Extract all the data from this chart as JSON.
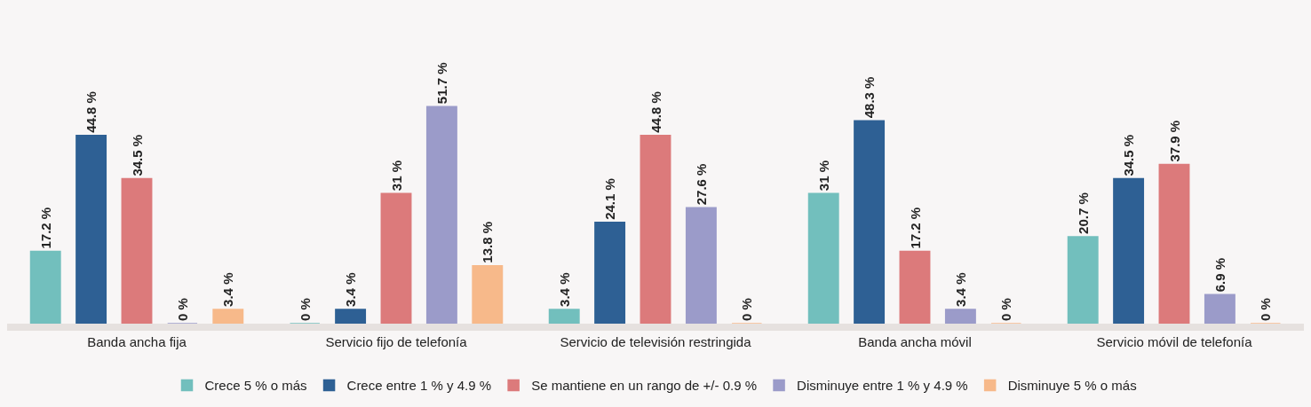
{
  "chart_data": {
    "type": "bar",
    "categories": [
      "Banda ancha fija",
      "Servicio fijo de telefonía",
      "Servicio de televisión restringida",
      "Banda ancha móvil",
      "Servicio móvil de telefonía"
    ],
    "series": [
      {
        "name": "Crece 5 % o más",
        "color": "#72bfbd",
        "values": [
          17.2,
          0,
          3.4,
          31,
          20.7
        ],
        "value_labels": [
          "17.2 %",
          "0 %",
          "3.4 %",
          "31 %",
          "20.7 %"
        ]
      },
      {
        "name": "Crece entre 1 % y 4.9 %",
        "color": "#2e6094",
        "values": [
          44.8,
          3.4,
          24.1,
          48.3,
          34.5
        ],
        "value_labels": [
          "44.8 %",
          "3.4 %",
          "24.1 %",
          "48.3 %",
          "34.5 %"
        ]
      },
      {
        "name": "Se mantiene en un rango de +/- 0.9 %",
        "color": "#dc7a7b",
        "values": [
          34.5,
          31,
          44.8,
          17.2,
          37.9
        ],
        "value_labels": [
          "34.5 %",
          "31 %",
          "44.8 %",
          "17.2 %",
          "37.9 %"
        ]
      },
      {
        "name": "Disminuye entre 1 % y 4.9 %",
        "color": "#9b9bc9",
        "values": [
          0,
          51.7,
          27.6,
          3.4,
          6.9
        ],
        "value_labels": [
          "0 %",
          "51.7 %",
          "27.6 %",
          "3.4 %",
          "6.9 %"
        ]
      },
      {
        "name": "Disminuye 5 % o más",
        "color": "#f7b98a",
        "values": [
          3.4,
          13.8,
          0,
          0,
          0
        ],
        "value_labels": [
          "3.4 %",
          "13.8 %",
          "0 %",
          "0 %",
          "0 %"
        ]
      }
    ],
    "grid": false,
    "legend": "bottom"
  }
}
